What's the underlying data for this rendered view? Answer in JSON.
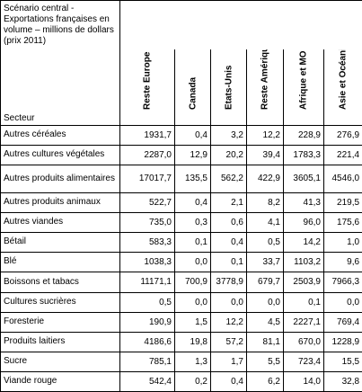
{
  "table": {
    "corner_title": "Scénario central - Exportations françaises en volume – millions de dollars (prix 2011)",
    "row_header": "Secteur",
    "columns": [
      "Reste Europe",
      "Canada",
      "Etats-Unis",
      "Reste Amérique",
      "Afrique et MO",
      "Asie et Océanie"
    ],
    "rows": [
      {
        "label": "Autres céréales",
        "values": [
          "1931,7",
          "0,4",
          "3,2",
          "12,2",
          "228,9",
          "276,9"
        ]
      },
      {
        "label": "Autres cultures végétales",
        "values": [
          "2287,0",
          "12,9",
          "20,2",
          "39,4",
          "1783,3",
          "221,4"
        ]
      },
      {
        "label": "Autres produits alimentaires",
        "values": [
          "17017,7",
          "135,5",
          "562,2",
          "422,9",
          "3605,1",
          "4546,0"
        ]
      },
      {
        "label": "Autres produits animaux",
        "values": [
          "522,7",
          "0,4",
          "2,1",
          "8,2",
          "41,3",
          "219,5"
        ]
      },
      {
        "label": "Autres viandes",
        "values": [
          "735,0",
          "0,3",
          "0,6",
          "4,1",
          "96,0",
          "175,6"
        ]
      },
      {
        "label": "Bétail",
        "values": [
          "583,3",
          "0,1",
          "0,4",
          "0,5",
          "14,2",
          "1,0"
        ]
      },
      {
        "label": "Blé",
        "values": [
          "1038,3",
          "0,0",
          "0,1",
          "33,7",
          "1103,2",
          "9,6"
        ]
      },
      {
        "label": "Boissons et tabacs",
        "values": [
          "11171,1",
          "700,9",
          "3778,9",
          "679,7",
          "2503,9",
          "7966,3"
        ]
      },
      {
        "label": "Cultures sucrières",
        "values": [
          "0,5",
          "0,0",
          "0,0",
          "0,0",
          "0,1",
          "0,0"
        ]
      },
      {
        "label": "Foresterie",
        "values": [
          "190,9",
          "1,5",
          "12,2",
          "4,5",
          "2227,1",
          "769,4"
        ]
      },
      {
        "label": "Produits laitiers",
        "values": [
          "4186,6",
          "19,8",
          "57,2",
          "81,1",
          "670,0",
          "1228,9"
        ]
      },
      {
        "label": "Sucre",
        "values": [
          "785,1",
          "1,3",
          "1,7",
          "5,5",
          "723,4",
          "15,5"
        ]
      },
      {
        "label": "Viande rouge",
        "values": [
          "542,4",
          "0,2",
          "0,4",
          "6,2",
          "14,0",
          "32,8"
        ]
      }
    ]
  }
}
